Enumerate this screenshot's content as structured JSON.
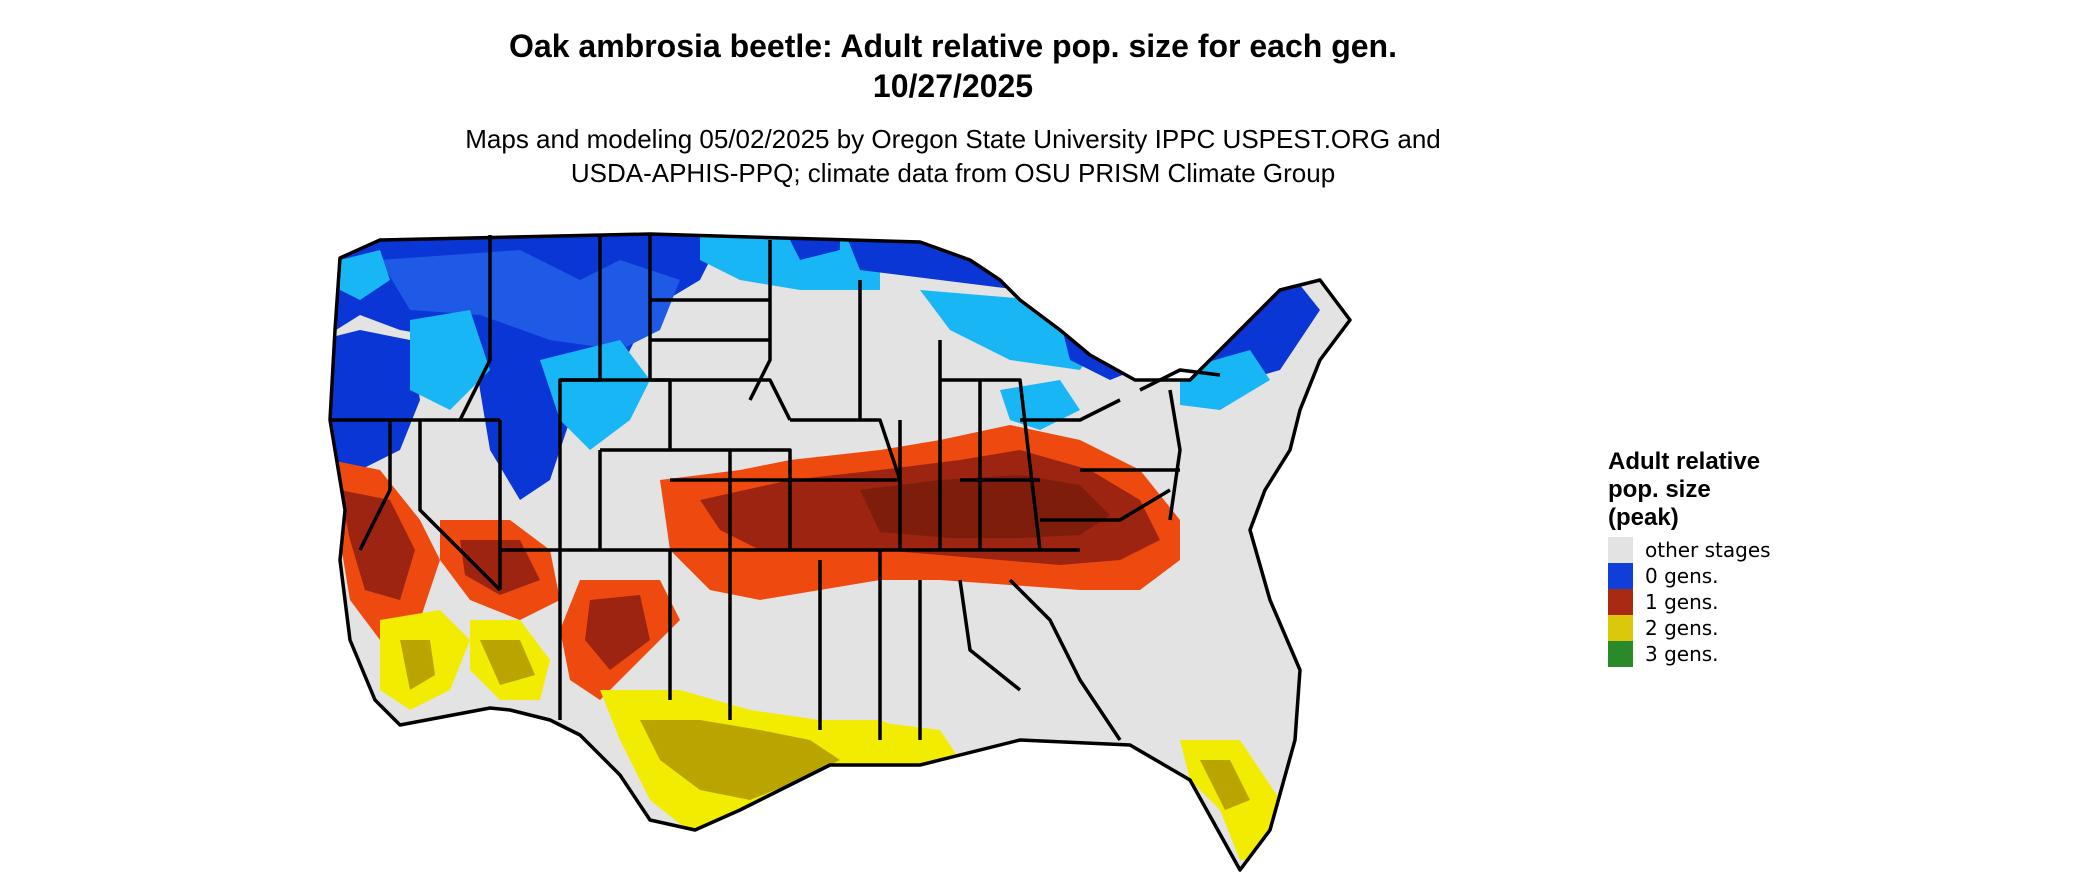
{
  "title": {
    "line1": "Oak ambrosia beetle: Adult relative pop. size for each gen.",
    "line2": "10/27/2025"
  },
  "subtitle": {
    "line1": "Maps and modeling 05/02/2025 by Oregon State University IPPC USPEST.ORG and",
    "line2": "USDA-APHIS-PPQ; climate data from OSU PRISM Climate Group"
  },
  "legend": {
    "title_lines": [
      "Adult relative",
      "pop. size",
      "(peak)"
    ],
    "items": [
      {
        "label": "other stages",
        "color": "#e3e3e3"
      },
      {
        "label": "0 gens.",
        "color": "#0f3fd8"
      },
      {
        "label": "1 gens.",
        "color": "#a92a12"
      },
      {
        "label": "2 gens.",
        "color": "#dcc80a"
      },
      {
        "label": "3 gens.",
        "color": "#2a8a2a"
      }
    ]
  },
  "map": {
    "region": "contiguous United States",
    "colors": {
      "other_stages": "#e3e3e3",
      "zero_gen_dark": "#0a36d6",
      "zero_gen_light": "#19b6f5",
      "one_gen_dark": "#9c2410",
      "one_gen_light": "#ee4a10",
      "two_gen_bright": "#f2ec00",
      "two_gen_olive": "#b9a400",
      "borders": "#000000"
    }
  }
}
